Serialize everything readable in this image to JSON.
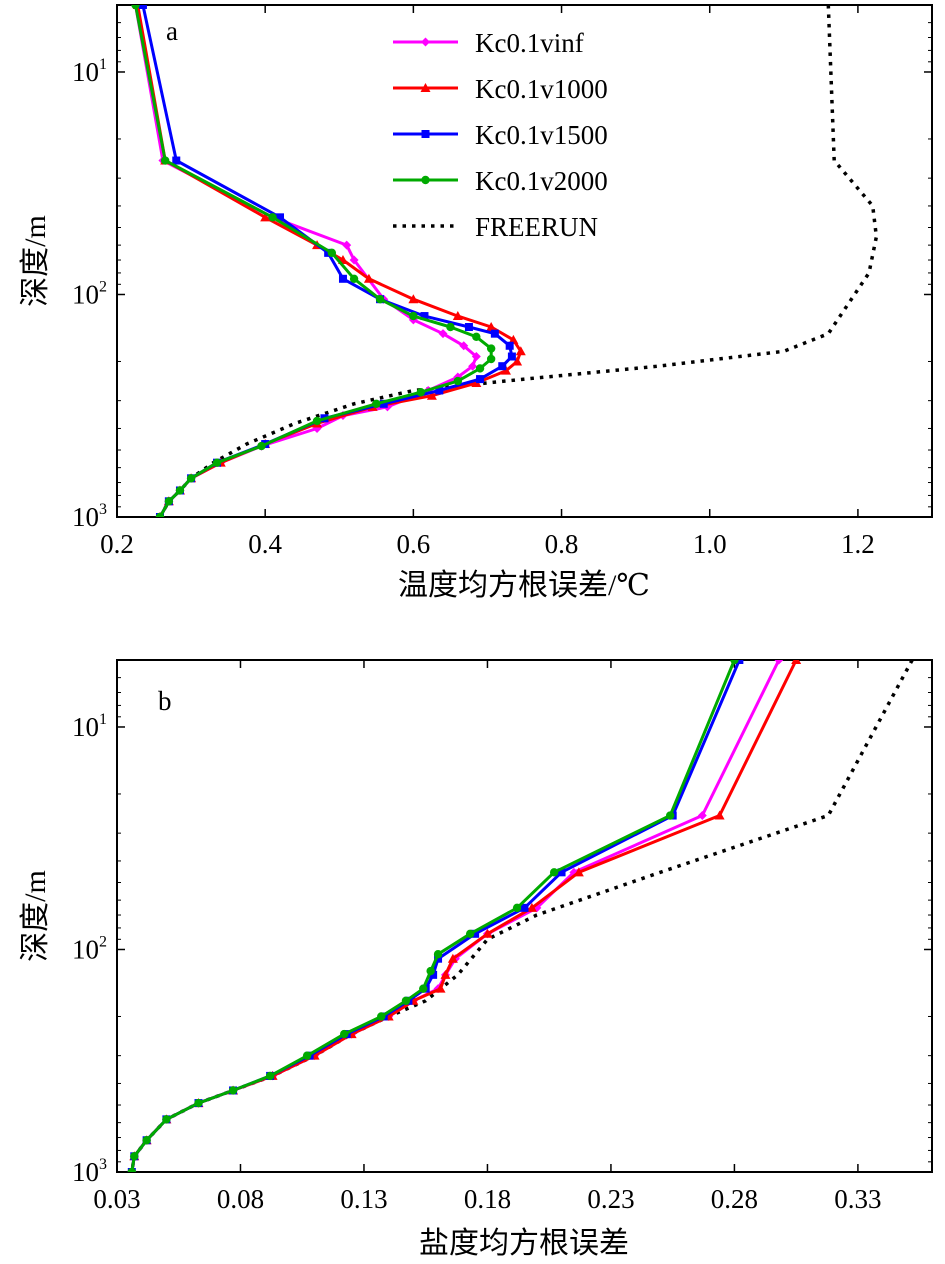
{
  "chart_data": [
    {
      "type": "line",
      "panel_label": "a",
      "xlabel": "温度均方根误差/℃",
      "ylabel": "深度/m",
      "y_scale": "log",
      "y_inverted": true,
      "xlim": [
        0.2,
        1.3
      ],
      "ylim": [
        5,
        1000
      ],
      "xticks": [
        0.2,
        0.4,
        0.6,
        0.8,
        1.0,
        1.2
      ],
      "xtick_labels": [
        "0.2",
        "0.4",
        "0.6",
        "0.8",
        "1.0",
        "1.2"
      ],
      "yticks": [
        {
          "value": 10,
          "base": "10",
          "exp": "1"
        },
        {
          "value": 100,
          "base": "10",
          "exp": "2"
        },
        {
          "value": 1000,
          "base": "10",
          "exp": "3"
        }
      ],
      "legend_position": "top-center",
      "grid": false,
      "series": [
        {
          "name": "Kc0.1vinf",
          "color": "#ff00ff",
          "marker": "diamond",
          "style": "solid",
          "points": [
            [
              0.225,
              5
            ],
            [
              0.262,
              25
            ],
            [
              0.41,
              45
            ],
            [
              0.51,
              60
            ],
            [
              0.52,
              70
            ],
            [
              0.56,
              105
            ],
            [
              0.6,
              130
            ],
            [
              0.64,
              150
            ],
            [
              0.668,
              170
            ],
            [
              0.685,
              190
            ],
            [
              0.68,
              210
            ],
            [
              0.66,
              235
            ],
            [
              0.62,
              270
            ],
            [
              0.565,
              320
            ],
            [
              0.505,
              350
            ],
            [
              0.47,
              400
            ],
            [
              0.395,
              480
            ],
            [
              0.34,
              570
            ],
            [
              0.3,
              670
            ],
            [
              0.285,
              760
            ],
            [
              0.27,
              850
            ],
            [
              0.258,
              1000
            ]
          ]
        },
        {
          "name": "Kc0.1v1000",
          "color": "#ff0000",
          "marker": "triangle",
          "style": "solid",
          "points": [
            [
              0.228,
              5
            ],
            [
              0.265,
              25
            ],
            [
              0.4,
              45
            ],
            [
              0.47,
              60
            ],
            [
              0.505,
              70
            ],
            [
              0.54,
              85
            ],
            [
              0.6,
              105
            ],
            [
              0.66,
              125
            ],
            [
              0.705,
              140
            ],
            [
              0.735,
              160
            ],
            [
              0.745,
              180
            ],
            [
              0.74,
              200
            ],
            [
              0.725,
              220
            ],
            [
              0.685,
              250
            ],
            [
              0.625,
              285
            ],
            [
              0.545,
              320
            ],
            [
              0.47,
              380
            ],
            [
              0.4,
              470
            ],
            [
              0.34,
              570
            ],
            [
              0.3,
              670
            ],
            [
              0.285,
              760
            ],
            [
              0.27,
              850
            ],
            [
              0.258,
              1000
            ]
          ]
        },
        {
          "name": "Kc0.1v1500",
          "color": "#0000ff",
          "marker": "square",
          "style": "solid",
          "points": [
            [
              0.235,
              5
            ],
            [
              0.28,
              25
            ],
            [
              0.42,
              45
            ],
            [
              0.485,
              65
            ],
            [
              0.505,
              85
            ],
            [
              0.555,
              105
            ],
            [
              0.615,
              125
            ],
            [
              0.675,
              140
            ],
            [
              0.71,
              150
            ],
            [
              0.73,
              170
            ],
            [
              0.733,
              190
            ],
            [
              0.72,
              210
            ],
            [
              0.69,
              240
            ],
            [
              0.635,
              270
            ],
            [
              0.56,
              310
            ],
            [
              0.48,
              360
            ],
            [
              0.4,
              470
            ],
            [
              0.335,
              570
            ],
            [
              0.3,
              670
            ],
            [
              0.285,
              760
            ],
            [
              0.27,
              850
            ],
            [
              0.258,
              1000
            ]
          ]
        },
        {
          "name": "Kc0.1v2000",
          "color": "#00aa00",
          "marker": "circle",
          "style": "solid",
          "points": [
            [
              0.225,
              5
            ],
            [
              0.265,
              25
            ],
            [
              0.41,
              45
            ],
            [
              0.49,
              65
            ],
            [
              0.52,
              85
            ],
            [
              0.555,
              105
            ],
            [
              0.6,
              125
            ],
            [
              0.65,
              140
            ],
            [
              0.685,
              155
            ],
            [
              0.705,
              175
            ],
            [
              0.705,
              195
            ],
            [
              0.69,
              215
            ],
            [
              0.66,
              245
            ],
            [
              0.61,
              275
            ],
            [
              0.55,
              310
            ],
            [
              0.47,
              370
            ],
            [
              0.395,
              480
            ],
            [
              0.335,
              570
            ],
            [
              0.3,
              670
            ],
            [
              0.285,
              760
            ],
            [
              0.27,
              850
            ],
            [
              0.258,
              1000
            ]
          ]
        },
        {
          "name": "FREERUN",
          "color": "#000000",
          "marker": "none",
          "style": "dotted",
          "points": [
            [
              1.16,
              5
            ],
            [
              1.168,
              25
            ],
            [
              1.22,
              40
            ],
            [
              1.225,
              55
            ],
            [
              1.215,
              80
            ],
            [
              1.16,
              150
            ],
            [
              1.1,
              180
            ],
            [
              0.93,
              210
            ],
            [
              0.75,
              240
            ],
            [
              0.6,
              270
            ],
            [
              0.52,
              310
            ],
            [
              0.44,
              380
            ],
            [
              0.375,
              470
            ],
            [
              0.33,
              570
            ],
            [
              0.3,
              670
            ],
            [
              0.285,
              760
            ],
            [
              0.27,
              850
            ],
            [
              0.258,
              1000
            ]
          ]
        }
      ]
    },
    {
      "type": "line",
      "panel_label": "b",
      "xlabel": "盐度均方根误差",
      "ylabel": "深度/m",
      "y_scale": "log",
      "y_inverted": true,
      "xlim": [
        0.03,
        0.36
      ],
      "ylim": [
        5,
        1000
      ],
      "xticks": [
        0.03,
        0.08,
        0.13,
        0.18,
        0.23,
        0.28,
        0.33
      ],
      "xtick_labels": [
        "0.03",
        "0.08",
        "0.13",
        "0.18",
        "0.23",
        "0.28",
        "0.33"
      ],
      "yticks": [
        {
          "value": 10,
          "base": "10",
          "exp": "1"
        },
        {
          "value": 100,
          "base": "10",
          "exp": "2"
        },
        {
          "value": 1000,
          "base": "10",
          "exp": "3"
        }
      ],
      "grid": false,
      "series": [
        {
          "name": "Kc0.1vinf",
          "color": "#ff00ff",
          "marker": "diamond",
          "style": "solid",
          "points": [
            [
              0.298,
              5
            ],
            [
              0.267,
              25
            ],
            [
              0.215,
              45
            ],
            [
              0.2,
              65
            ],
            [
              0.18,
              85
            ],
            [
              0.167,
              110
            ],
            [
              0.163,
              130
            ],
            [
              0.16,
              150
            ],
            [
              0.15,
              170
            ],
            [
              0.14,
              200
            ],
            [
              0.125,
              240
            ],
            [
              0.11,
              300
            ],
            [
              0.093,
              370
            ],
            [
              0.077,
              430
            ],
            [
              0.063,
              490
            ],
            [
              0.05,
              580
            ],
            [
              0.042,
              720
            ],
            [
              0.037,
              850
            ],
            [
              0.036,
              1000
            ]
          ]
        },
        {
          "name": "Kc0.1v1000",
          "color": "#ff0000",
          "marker": "triangle",
          "style": "solid",
          "points": [
            [
              0.305,
              5
            ],
            [
              0.274,
              25
            ],
            [
              0.217,
              45
            ],
            [
              0.198,
              65
            ],
            [
              0.18,
              85
            ],
            [
              0.166,
              110
            ],
            [
              0.163,
              130
            ],
            [
              0.161,
              150
            ],
            [
              0.15,
              170
            ],
            [
              0.14,
              200
            ],
            [
              0.125,
              240
            ],
            [
              0.11,
              300
            ],
            [
              0.093,
              370
            ],
            [
              0.077,
              430
            ],
            [
              0.063,
              490
            ],
            [
              0.05,
              580
            ],
            [
              0.042,
              720
            ],
            [
              0.037,
              850
            ],
            [
              0.036,
              1000
            ]
          ]
        },
        {
          "name": "Kc0.1v1500",
          "color": "#0000ff",
          "marker": "square",
          "style": "solid",
          "points": [
            [
              0.282,
              5
            ],
            [
              0.255,
              25
            ],
            [
              0.21,
              45
            ],
            [
              0.195,
              65
            ],
            [
              0.175,
              85
            ],
            [
              0.16,
              110
            ],
            [
              0.158,
              130
            ],
            [
              0.155,
              150
            ],
            [
              0.148,
              170
            ],
            [
              0.138,
              200
            ],
            [
              0.123,
              240
            ],
            [
              0.108,
              300
            ],
            [
              0.092,
              370
            ],
            [
              0.077,
              430
            ],
            [
              0.063,
              490
            ],
            [
              0.05,
              580
            ],
            [
              0.042,
              720
            ],
            [
              0.037,
              850
            ],
            [
              0.036,
              1000
            ]
          ]
        },
        {
          "name": "Kc0.1v2000",
          "color": "#00aa00",
          "marker": "circle",
          "style": "solid",
          "points": [
            [
              0.28,
              5
            ],
            [
              0.254,
              25
            ],
            [
              0.207,
              45
            ],
            [
              0.192,
              65
            ],
            [
              0.173,
              85
            ],
            [
              0.16,
              105
            ],
            [
              0.157,
              125
            ],
            [
              0.154,
              150
            ],
            [
              0.147,
              170
            ],
            [
              0.137,
              200
            ],
            [
              0.122,
              240
            ],
            [
              0.107,
              300
            ],
            [
              0.092,
              370
            ],
            [
              0.077,
              430
            ],
            [
              0.063,
              490
            ],
            [
              0.05,
              580
            ],
            [
              0.042,
              720
            ],
            [
              0.037,
              850
            ],
            [
              0.036,
              1000
            ]
          ]
        },
        {
          "name": "FREERUN",
          "color": "#000000",
          "marker": "none",
          "style": "dotted",
          "points": [
            [
              0.352,
              5
            ],
            [
              0.318,
              25
            ],
            [
              0.25,
              45
            ],
            [
              0.2,
              70
            ],
            [
              0.18,
              90
            ],
            [
              0.168,
              130
            ],
            [
              0.155,
              170
            ],
            [
              0.14,
              200
            ],
            [
              0.125,
              240
            ],
            [
              0.11,
              300
            ],
            [
              0.093,
              370
            ],
            [
              0.077,
              430
            ],
            [
              0.063,
              490
            ],
            [
              0.05,
              580
            ],
            [
              0.042,
              720
            ],
            [
              0.037,
              850
            ],
            [
              0.036,
              1000
            ]
          ]
        }
      ]
    }
  ]
}
